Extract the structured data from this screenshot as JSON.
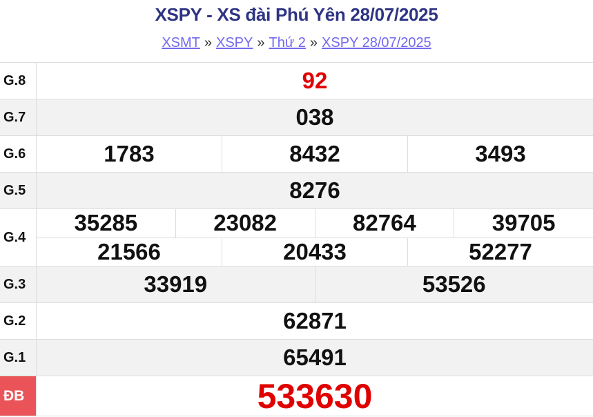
{
  "header": {
    "title": "XSPY - XS đài Phú Yên 28/07/2025"
  },
  "breadcrumb": {
    "items": [
      "XSMT",
      "XSPY",
      "Thứ 2",
      "XSPY 28/07/2025"
    ],
    "separator": "»"
  },
  "colors": {
    "title": "#2e3483",
    "link": "#7468ee",
    "special_bg": "#ea5458",
    "highlight": "#e00000"
  },
  "prizes": {
    "g8": {
      "label": "G.8",
      "numbers": [
        "92"
      ]
    },
    "g7": {
      "label": "G.7",
      "numbers": [
        "038"
      ]
    },
    "g6": {
      "label": "G.6",
      "numbers": [
        "1783",
        "8432",
        "3493"
      ]
    },
    "g5": {
      "label": "G.5",
      "numbers": [
        "8276"
      ]
    },
    "g4": {
      "label": "G.4",
      "numbers": [
        "35285",
        "23082",
        "82764",
        "39705",
        "21566",
        "20433",
        "52277"
      ]
    },
    "g3": {
      "label": "G.3",
      "numbers": [
        "33919",
        "53526"
      ]
    },
    "g2": {
      "label": "G.2",
      "numbers": [
        "62871"
      ]
    },
    "g1": {
      "label": "G.1",
      "numbers": [
        "65491"
      ]
    },
    "db": {
      "label": "ĐB",
      "numbers": [
        "533630"
      ]
    }
  }
}
